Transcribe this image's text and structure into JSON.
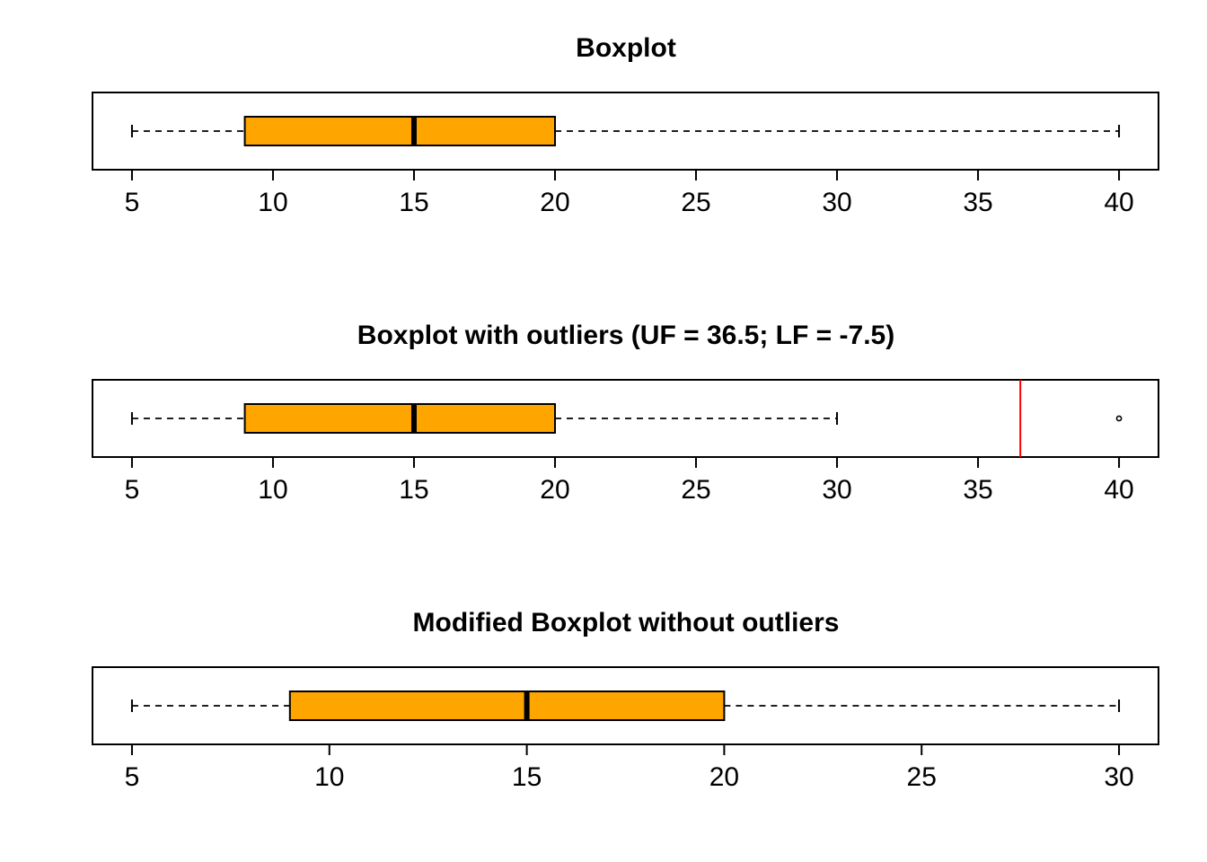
{
  "colors": {
    "box_fill": "#FFA500",
    "stroke": "#000000",
    "fence_line": "#FF0000",
    "background": "#FFFFFF"
  },
  "chart_data": [
    {
      "type": "boxplot",
      "orientation": "horizontal",
      "title": "Boxplot",
      "xlim": [
        3.6,
        41.4
      ],
      "ticks": [
        5,
        10,
        15,
        20,
        25,
        30,
        35,
        40
      ],
      "tick_labels": [
        "5",
        "10",
        "15",
        "20",
        "25",
        "30",
        "35",
        "40"
      ],
      "stats": {
        "whisker_low": 5,
        "q1": 9,
        "median": 15,
        "q3": 20,
        "whisker_high": 40
      },
      "outliers": [],
      "reference_lines": []
    },
    {
      "type": "boxplot",
      "orientation": "horizontal",
      "title": "Boxplot with outliers (UF = 36.5; LF = -7.5)",
      "xlim": [
        3.6,
        41.4
      ],
      "ticks": [
        5,
        10,
        15,
        20,
        25,
        30,
        35,
        40
      ],
      "tick_labels": [
        "5",
        "10",
        "15",
        "20",
        "25",
        "30",
        "35",
        "40"
      ],
      "stats": {
        "whisker_low": 5,
        "q1": 9,
        "median": 15,
        "q3": 20,
        "whisker_high": 30
      },
      "outliers": [
        40
      ],
      "reference_lines": [
        {
          "x": 36.5,
          "color": "#FF0000"
        }
      ]
    },
    {
      "type": "boxplot",
      "orientation": "horizontal",
      "title": "Modified Boxplot without outliers",
      "xlim": [
        4.0,
        31.0
      ],
      "ticks": [
        5,
        10,
        15,
        20,
        25,
        30
      ],
      "tick_labels": [
        "5",
        "10",
        "15",
        "20",
        "25",
        "30"
      ],
      "stats": {
        "whisker_low": 5,
        "q1": 9,
        "median": 15,
        "q3": 20,
        "whisker_high": 30
      },
      "outliers": [],
      "reference_lines": []
    }
  ]
}
